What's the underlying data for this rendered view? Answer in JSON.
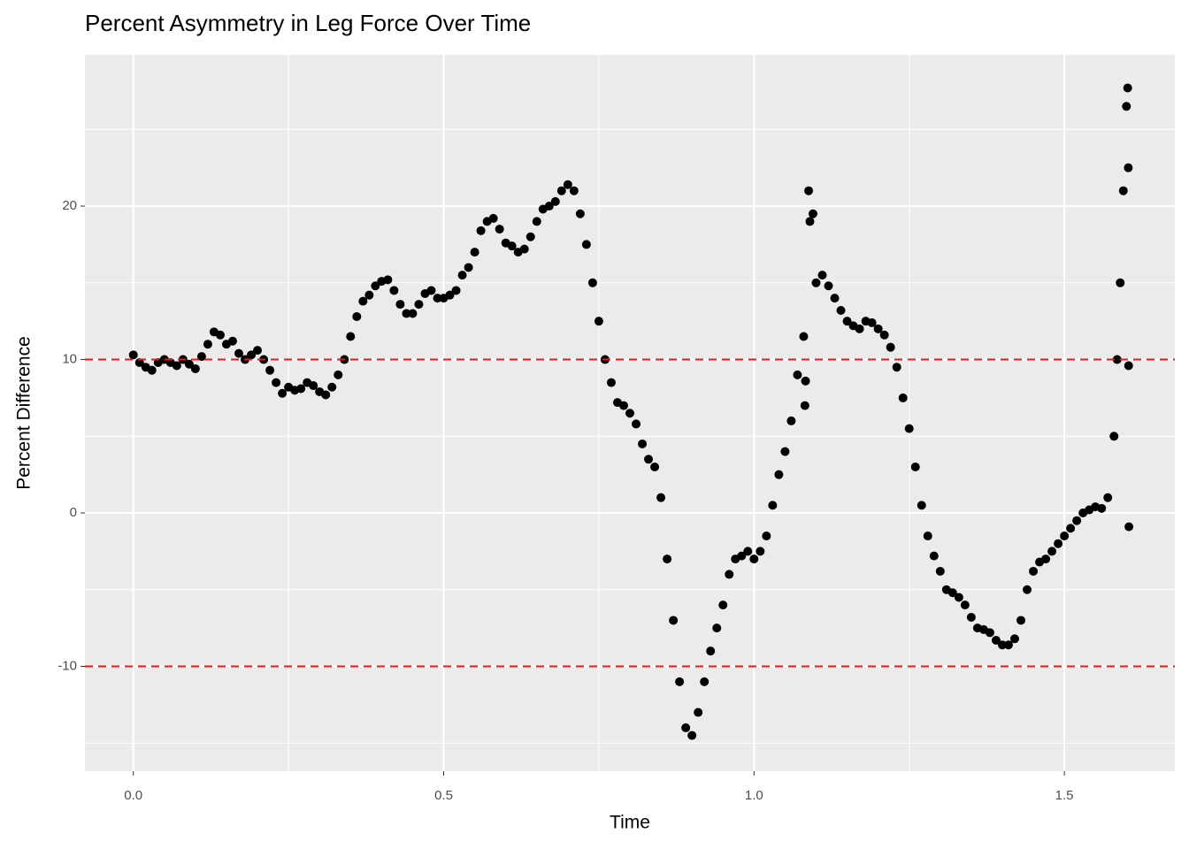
{
  "chart_data": {
    "type": "scatter",
    "title": "Percent Asymmetry in Leg Force Over Time",
    "x_label": "Time",
    "y_label": "Percent Difference",
    "color": "#000000",
    "x": [
      0.0,
      0.01,
      0.02,
      0.03,
      0.04,
      0.05,
      0.06,
      0.07,
      0.08,
      0.09,
      0.1,
      0.11,
      0.12,
      0.13,
      0.14,
      0.15,
      0.16,
      0.17,
      0.18,
      0.19,
      0.2,
      0.21,
      0.22,
      0.23,
      0.24,
      0.25,
      0.26,
      0.27,
      0.28,
      0.29,
      0.3,
      0.31,
      0.32,
      0.33,
      0.34,
      0.35,
      0.36,
      0.37,
      0.38,
      0.39,
      0.4,
      0.41,
      0.42,
      0.43,
      0.44,
      0.45,
      0.46,
      0.47,
      0.48,
      0.49,
      0.5,
      0.51,
      0.52,
      0.53,
      0.54,
      0.55,
      0.56,
      0.57,
      0.58,
      0.59,
      0.6,
      0.61,
      0.62,
      0.63,
      0.64,
      0.65,
      0.66,
      0.67,
      0.68,
      0.69,
      0.7,
      0.71,
      0.72,
      0.73,
      0.74,
      0.75,
      0.76,
      0.77,
      0.78,
      0.79,
      0.8,
      0.81,
      0.82,
      0.83,
      0.84,
      0.85,
      0.86,
      0.87,
      0.88,
      0.89,
      0.9,
      0.91,
      0.92,
      0.93,
      0.94,
      0.95,
      0.96,
      0.97,
      0.98,
      0.99,
      1.0,
      1.01,
      1.02,
      1.03,
      1.04,
      1.05,
      1.06,
      1.07,
      1.08,
      1.082,
      1.083,
      1.088,
      1.09,
      1.095,
      1.1,
      1.11,
      1.12,
      1.13,
      1.14,
      1.15,
      1.16,
      1.17,
      1.18,
      1.19,
      1.2,
      1.21,
      1.22,
      1.23,
      1.24,
      1.25,
      1.26,
      1.27,
      1.28,
      1.29,
      1.3,
      1.31,
      1.32,
      1.33,
      1.34,
      1.35,
      1.36,
      1.37,
      1.38,
      1.39,
      1.4,
      1.41,
      1.42,
      1.43,
      1.44,
      1.45,
      1.46,
      1.47,
      1.48,
      1.49,
      1.5,
      1.51,
      1.52,
      1.53,
      1.54,
      1.55,
      1.56,
      1.57,
      1.58,
      1.585,
      1.59,
      1.595,
      1.6,
      1.602,
      1.603,
      1.6035,
      1.604
    ],
    "values": [
      10.3,
      9.8,
      9.5,
      9.3,
      9.8,
      10.0,
      9.8,
      9.6,
      10.0,
      9.7,
      9.4,
      10.2,
      11.0,
      11.8,
      11.6,
      11.0,
      11.2,
      10.4,
      10.0,
      10.3,
      10.6,
      10.0,
      9.3,
      8.5,
      7.8,
      8.2,
      8.0,
      8.1,
      8.5,
      8.3,
      7.9,
      7.7,
      8.2,
      9.0,
      10.0,
      11.5,
      12.8,
      13.8,
      14.2,
      14.8,
      15.1,
      15.2,
      14.5,
      13.6,
      13.0,
      13.0,
      13.6,
      14.3,
      14.5,
      14.0,
      14.0,
      14.2,
      14.5,
      15.5,
      16.0,
      17.0,
      18.4,
      19.0,
      19.2,
      18.5,
      17.6,
      17.4,
      17.0,
      17.2,
      18.0,
      19.0,
      19.8,
      20.0,
      20.3,
      21.0,
      21.4,
      21.0,
      19.5,
      17.5,
      15.0,
      12.5,
      10.0,
      8.5,
      7.2,
      7.0,
      6.5,
      5.8,
      4.5,
      3.5,
      3.0,
      1.0,
      -3.0,
      -7.0,
      -11.0,
      -14.0,
      -14.5,
      -13.0,
      -11.0,
      -9.0,
      -7.5,
      -6.0,
      -4.0,
      -3.0,
      -2.8,
      -2.5,
      -3.0,
      -2.5,
      -1.5,
      0.5,
      2.5,
      4.0,
      6.0,
      9.0,
      11.5,
      7.0,
      8.6,
      21.0,
      19.0,
      19.5,
      15.0,
      15.5,
      14.8,
      14.0,
      13.2,
      12.5,
      12.2,
      12.0,
      12.5,
      12.4,
      12.0,
      11.6,
      10.8,
      9.5,
      7.5,
      5.5,
      3.0,
      0.5,
      -1.5,
      -2.8,
      -3.8,
      -5.0,
      -5.2,
      -5.5,
      -6.0,
      -6.8,
      -7.5,
      -7.6,
      -7.8,
      -8.3,
      -8.6,
      -8.6,
      -8.2,
      -7.0,
      -5.0,
      -3.8,
      -3.2,
      -3.0,
      -2.5,
      -2.0,
      -1.5,
      -1.0,
      -0.5,
      0.0,
      0.2,
      0.4,
      0.3,
      1.0,
      5.0,
      10.0,
      15.0,
      21.0,
      26.5,
      27.7,
      22.5,
      9.6,
      -0.9
    ],
    "xlim": [
      -0.078,
      1.678
    ],
    "ylim": [
      -16.83,
      29.86
    ],
    "xticks": [
      {
        "value": 0,
        "label": "0.0"
      },
      0.5,
      {
        "value": 1,
        "label": "1.0"
      },
      1.5
    ],
    "yticks": [
      -10,
      0,
      10,
      20
    ],
    "x_minor_grid": [
      0.25,
      0.75,
      1.25
    ],
    "y_minor_grid": [
      -15,
      -5,
      5,
      15,
      25
    ],
    "hlines": [
      10,
      -10
    ],
    "hline_color": "#e8191c",
    "grid": true
  }
}
